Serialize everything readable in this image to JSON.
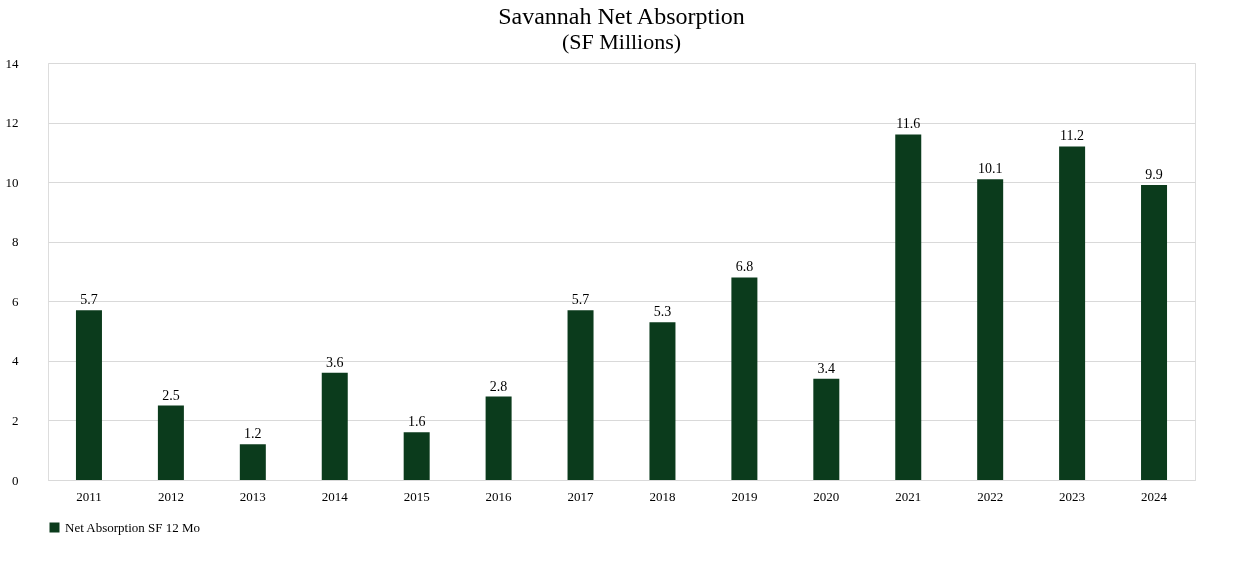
{
  "chart_data": {
    "type": "bar",
    "title": "Savannah Net Absorption",
    "subtitle": "(SF Millions)",
    "categories": [
      "2011",
      "2012",
      "2013",
      "2014",
      "2015",
      "2016",
      "2017",
      "2018",
      "2019",
      "2020",
      "2021",
      "2022",
      "2023",
      "2024"
    ],
    "series": [
      {
        "name": "Net Absorption SF 12 Mo",
        "color": "#0b3b1c",
        "values": [
          5.7,
          2.5,
          1.2,
          3.6,
          1.6,
          2.8,
          5.7,
          5.3,
          6.8,
          3.4,
          11.6,
          10.1,
          11.2,
          9.9
        ]
      }
    ],
    "ylim": [
      0,
      14
    ],
    "yticks": [
      0,
      2,
      4,
      6,
      8,
      10,
      12,
      14
    ],
    "grid": "y",
    "legend": "bottom",
    "data_labels": true
  }
}
